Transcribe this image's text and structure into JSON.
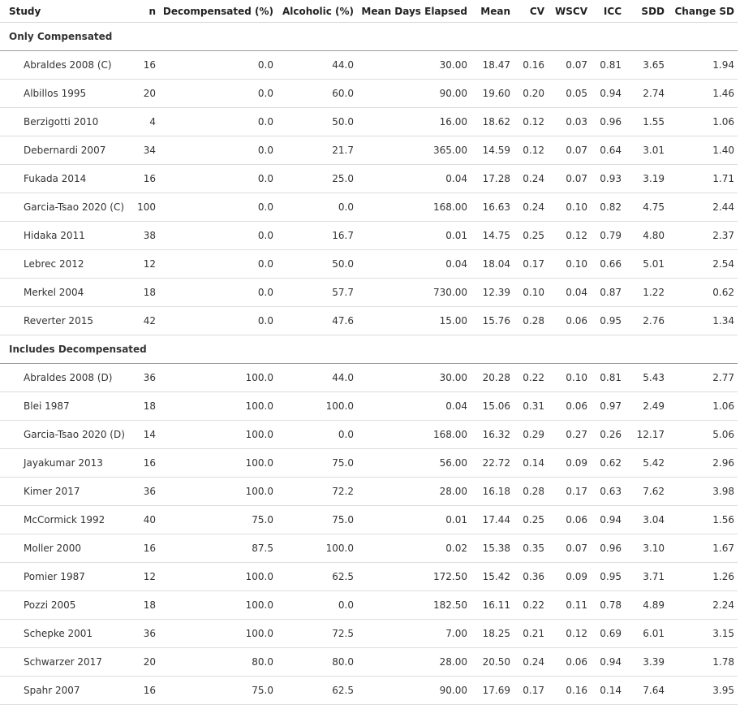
{
  "columns": [
    "Study",
    "n",
    "Decompensated (%)",
    "Alcoholic (%)",
    "Mean Days Elapsed",
    "Mean",
    "CV",
    "WSCV",
    "ICC",
    "SDD",
    "Change SD"
  ],
  "groups": [
    {
      "title": "Only Compensated",
      "rows": [
        [
          "Abraldes 2008 (C)",
          "16",
          "0.0",
          "44.0",
          "30.00",
          "18.47",
          "0.16",
          "0.07",
          "0.81",
          "3.65",
          "1.94"
        ],
        [
          "Albillos 1995",
          "20",
          "0.0",
          "60.0",
          "90.00",
          "19.60",
          "0.20",
          "0.05",
          "0.94",
          "2.74",
          "1.46"
        ],
        [
          "Berzigotti 2010",
          "4",
          "0.0",
          "50.0",
          "16.00",
          "18.62",
          "0.12",
          "0.03",
          "0.96",
          "1.55",
          "1.06"
        ],
        [
          "Debernardi 2007",
          "34",
          "0.0",
          "21.7",
          "365.00",
          "14.59",
          "0.12",
          "0.07",
          "0.64",
          "3.01",
          "1.40"
        ],
        [
          "Fukada 2014",
          "16",
          "0.0",
          "25.0",
          "0.04",
          "17.28",
          "0.24",
          "0.07",
          "0.93",
          "3.19",
          "1.71"
        ],
        [
          "Garcia-Tsao 2020 (C)",
          "100",
          "0.0",
          "0.0",
          "168.00",
          "16.63",
          "0.24",
          "0.10",
          "0.82",
          "4.75",
          "2.44"
        ],
        [
          "Hidaka 2011",
          "38",
          "0.0",
          "16.7",
          "0.01",
          "14.75",
          "0.25",
          "0.12",
          "0.79",
          "4.80",
          "2.37"
        ],
        [
          "Lebrec 2012",
          "12",
          "0.0",
          "50.0",
          "0.04",
          "18.04",
          "0.17",
          "0.10",
          "0.66",
          "5.01",
          "2.54"
        ],
        [
          "Merkel 2004",
          "18",
          "0.0",
          "57.7",
          "730.00",
          "12.39",
          "0.10",
          "0.04",
          "0.87",
          "1.22",
          "0.62"
        ],
        [
          "Reverter 2015",
          "42",
          "0.0",
          "47.6",
          "15.00",
          "15.76",
          "0.28",
          "0.06",
          "0.95",
          "2.76",
          "1.34"
        ]
      ]
    },
    {
      "title": "Includes Decompensated",
      "rows": [
        [
          "Abraldes 2008 (D)",
          "36",
          "100.0",
          "44.0",
          "30.00",
          "20.28",
          "0.22",
          "0.10",
          "0.81",
          "5.43",
          "2.77"
        ],
        [
          "Blei 1987",
          "18",
          "100.0",
          "100.0",
          "0.04",
          "15.06",
          "0.31",
          "0.06",
          "0.97",
          "2.49",
          "1.06"
        ],
        [
          "Garcia-Tsao 2020 (D)",
          "14",
          "100.0",
          "0.0",
          "168.00",
          "16.32",
          "0.29",
          "0.27",
          "0.26",
          "12.17",
          "5.06"
        ],
        [
          "Jayakumar 2013",
          "16",
          "100.0",
          "75.0",
          "56.00",
          "22.72",
          "0.14",
          "0.09",
          "0.62",
          "5.42",
          "2.96"
        ],
        [
          "Kimer 2017",
          "36",
          "100.0",
          "72.2",
          "28.00",
          "16.18",
          "0.28",
          "0.17",
          "0.63",
          "7.62",
          "3.98"
        ],
        [
          "McCormick 1992",
          "40",
          "75.0",
          "75.0",
          "0.01",
          "17.44",
          "0.25",
          "0.06",
          "0.94",
          "3.04",
          "1.56"
        ],
        [
          "Moller 2000",
          "16",
          "87.5",
          "100.0",
          "0.02",
          "15.38",
          "0.35",
          "0.07",
          "0.96",
          "3.10",
          "1.67"
        ],
        [
          "Pomier 1987",
          "12",
          "100.0",
          "62.5",
          "172.50",
          "15.42",
          "0.36",
          "0.09",
          "0.95",
          "3.71",
          "1.26"
        ],
        [
          "Pozzi 2005",
          "18",
          "100.0",
          "0.0",
          "182.50",
          "16.11",
          "0.22",
          "0.11",
          "0.78",
          "4.89",
          "2.24"
        ],
        [
          "Schepke 2001",
          "36",
          "100.0",
          "72.5",
          "7.00",
          "18.25",
          "0.21",
          "0.12",
          "0.69",
          "6.01",
          "3.15"
        ],
        [
          "Schwarzer 2017",
          "20",
          "80.0",
          "80.0",
          "28.00",
          "20.50",
          "0.24",
          "0.06",
          "0.94",
          "3.39",
          "1.78"
        ],
        [
          "Spahr 2007",
          "16",
          "75.0",
          "62.5",
          "90.00",
          "17.69",
          "0.17",
          "0.16",
          "0.14",
          "7.64",
          "3.95"
        ]
      ]
    }
  ]
}
